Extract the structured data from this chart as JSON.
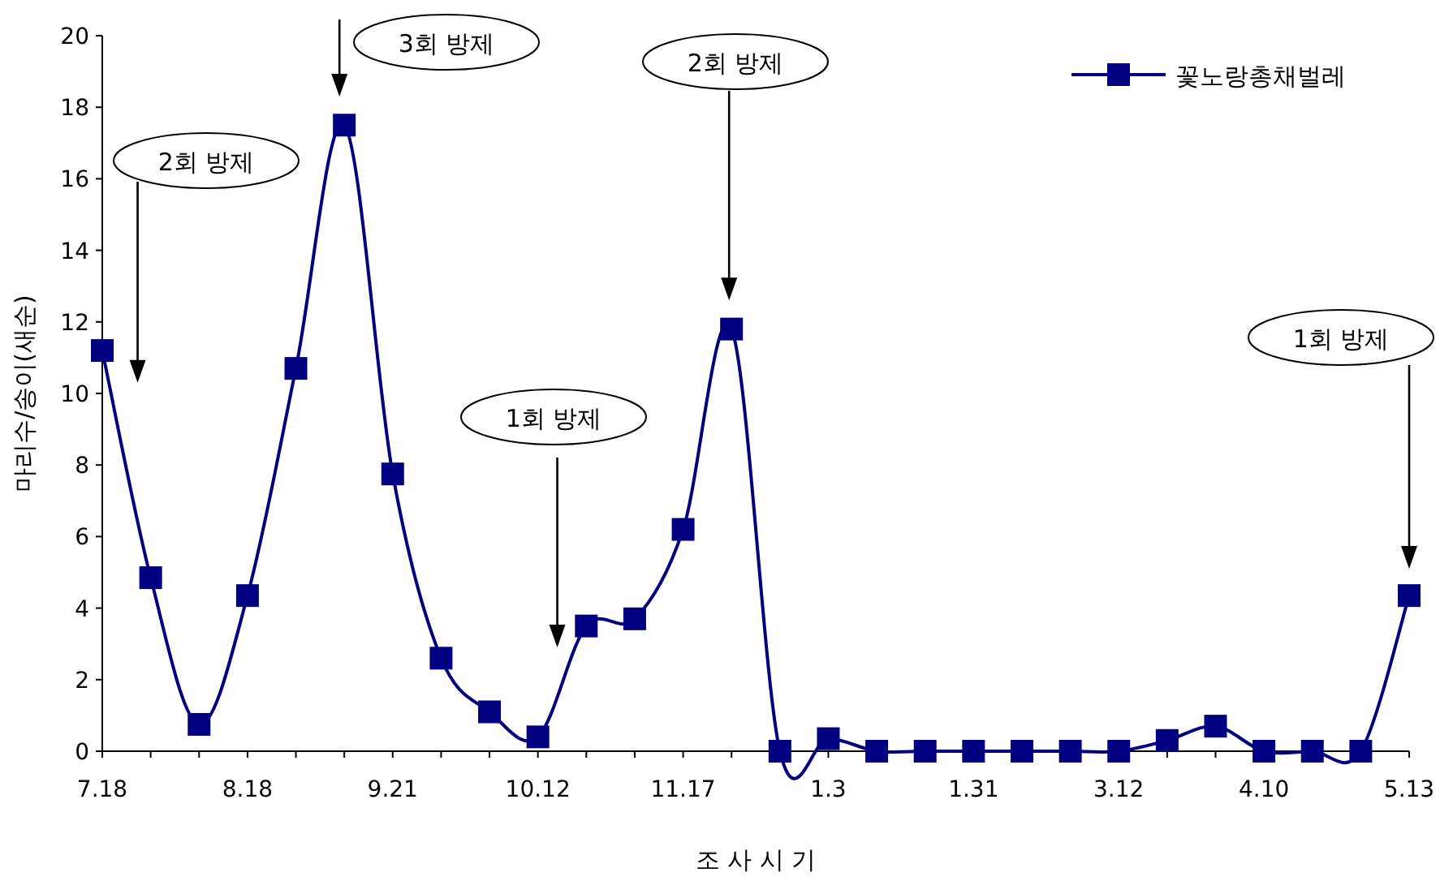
{
  "chart_data": {
    "type": "line",
    "xlabel": "조 사 시 기",
    "ylabel": "마리수/송이(새순)",
    "categories": [
      "7.18",
      null,
      null,
      "8.18",
      null,
      null,
      "9.21",
      null,
      null,
      "10.12",
      null,
      null,
      "11.17",
      null,
      null,
      "1.3",
      null,
      null,
      "1.31",
      null,
      null,
      "3.12",
      null,
      null,
      "4.10",
      null,
      null,
      "5.13"
    ],
    "series": [
      {
        "name": "꽃노랑총채벌레",
        "color": "#000080",
        "values": [
          11.2,
          4.85,
          0.75,
          4.35,
          10.7,
          17.5,
          7.75,
          2.6,
          1.1,
          0.4,
          3.5,
          3.7,
          6.2,
          11.8,
          0,
          0.35,
          0,
          0,
          0,
          0,
          0,
          0,
          0.3,
          0.7,
          0,
          0,
          0,
          4.35
        ]
      }
    ],
    "ylim": [
      0,
      20
    ],
    "yticks": [
      0,
      2,
      4,
      6,
      8,
      10,
      12,
      14,
      16,
      18,
      20
    ],
    "grid": false,
    "legend": "top right",
    "marker": "square",
    "line_style": "solid",
    "annotations": [
      "2회 방제",
      "3회 방제",
      "1회 방제",
      "2회 방제",
      "1회 방제"
    ]
  }
}
